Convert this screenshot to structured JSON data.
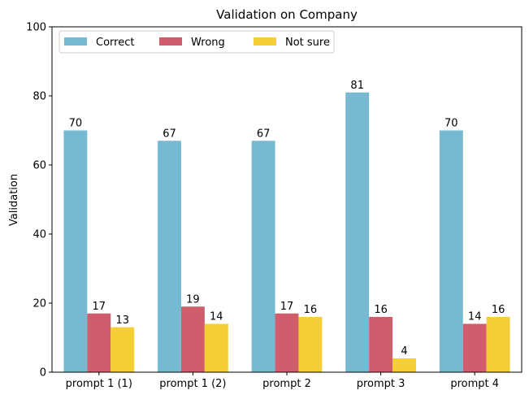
{
  "chart_data": {
    "type": "bar",
    "title": "Validation on Company",
    "xlabel": "",
    "ylabel": "Validation",
    "ylim": [
      0,
      100
    ],
    "yticks": [
      0,
      20,
      40,
      60,
      80,
      100
    ],
    "categories": [
      "prompt 1 (1)",
      "prompt 1 (2)",
      "prompt 2",
      "prompt 3",
      "prompt 4"
    ],
    "series": [
      {
        "name": "Correct",
        "color": "#77b9d1",
        "values": [
          70,
          67,
          67,
          81,
          70
        ]
      },
      {
        "name": "Wrong",
        "color": "#d15c6b",
        "values": [
          17,
          19,
          17,
          16,
          14
        ]
      },
      {
        "name": "Not sure",
        "color": "#f5cf35",
        "values": [
          13,
          14,
          16,
          4,
          16
        ]
      }
    ],
    "legend_position": "top-left",
    "grid": false
  }
}
